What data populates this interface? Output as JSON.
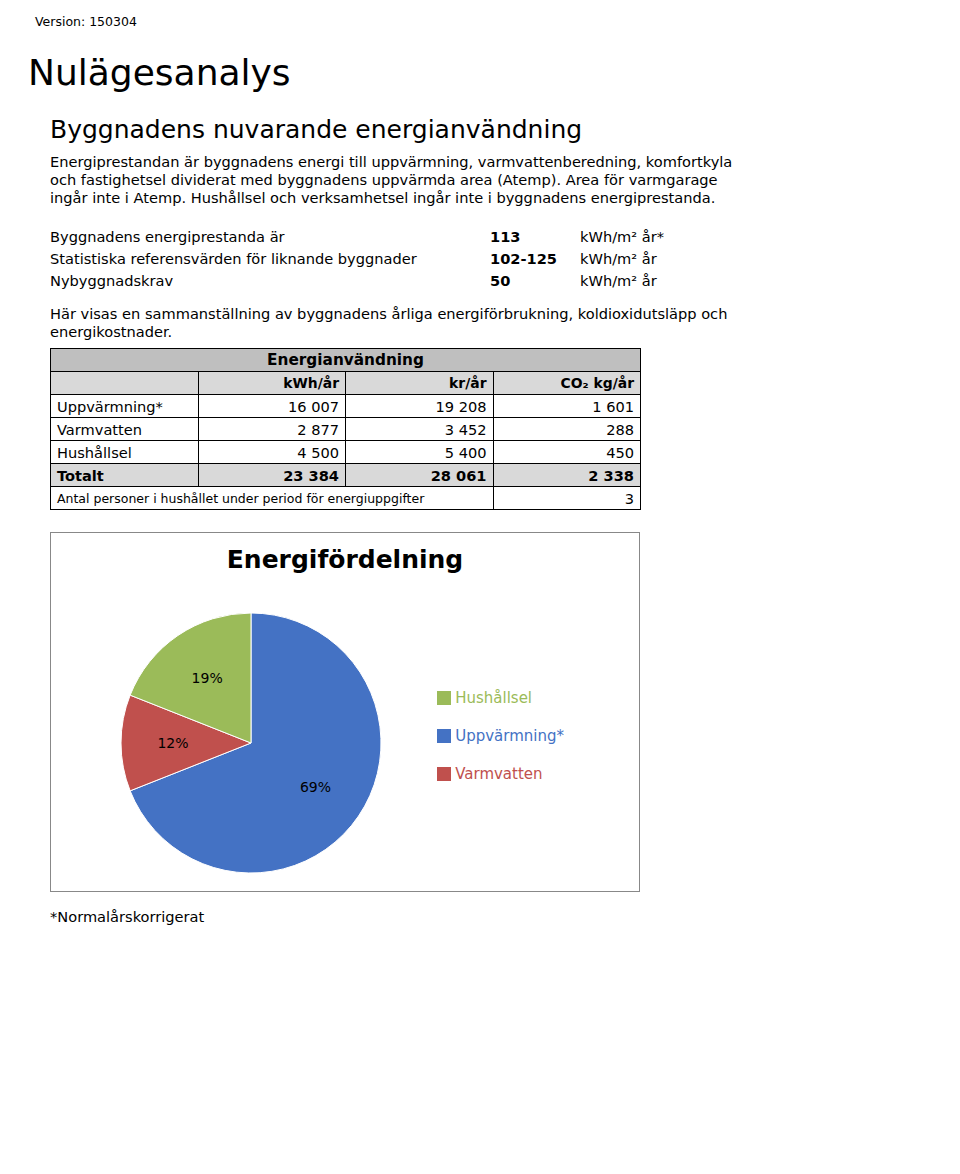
{
  "chart_data": {
    "type": "pie",
    "title": "Energifördelning",
    "categories": [
      "Uppvärmning*",
      "Varmvatten",
      "Hushållsel"
    ],
    "values": [
      69,
      12,
      19
    ],
    "value_labels": [
      "69%",
      "12%",
      "19%"
    ],
    "colors": [
      "#4472C4",
      "#C0504D",
      "#9BBB59"
    ],
    "data_labels": true,
    "legend": "right",
    "annotations": [
      "Version: 150304",
      "Nulägesanalys",
      "Byggnadens nuvarande energianvändning",
      "Energiprestandan är byggnadens energi till uppvärmning, varmvattenberedning, komfortkyla",
      "och fastighetsel dividerat med byggnadens uppvärmda area (Atemp). Area för varmgarage",
      "ingår inte i Atemp. Hushållsel och verksamhetsel ingår inte i byggnadens energiprestanda.",
      "Byggnadens energiprestanda är",
      "113",
      "kWh/m² år*",
      "Statistiska referensvärden för liknande byggnader",
      "102-125",
      "kWh/m² år",
      "Nybyggnadskrav",
      "50",
      "kWh/m² år",
      "Här visas en sammanställning av byggnadens årliga energiförbrukning, koldioxidutsläpp och",
      "energikostnader.",
      "Energianvändning",
      "kWh/år",
      "kr/år",
      "CO₂ kg/år",
      "Uppvärmning*",
      "16 007",
      "19 208",
      "1 601",
      "Varmvatten",
      "2 877",
      "3 452",
      "288",
      "Hushållsel",
      "4 500",
      "5 400",
      "450",
      "Totalt",
      "23 384",
      "28 061",
      "2 338",
      "Antal personer i hushållet under period för energiuppgifter",
      "3",
      "*Normalårskorrigerat"
    ]
  }
}
